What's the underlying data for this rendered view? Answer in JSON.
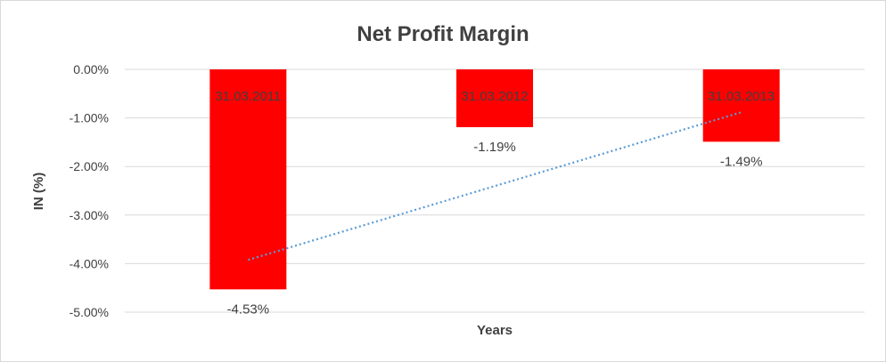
{
  "chart_data": {
    "type": "bar",
    "title": "Net Profit Margin",
    "xlabel": "Years",
    "ylabel": "IN (%)",
    "categories": [
      "31.03.2011",
      "31.03.2012",
      "31.03.2013"
    ],
    "values": [
      -4.53,
      -1.19,
      -1.49
    ],
    "data_labels": [
      "-4.53%",
      "-1.19%",
      "-1.49%"
    ],
    "yticks": [
      "0.00%",
      "-1.00%",
      "-2.00%",
      "-3.00%",
      "-4.00%",
      "-5.00%"
    ],
    "ylim": [
      -5,
      0
    ],
    "grid": true,
    "trendline": {
      "type": "linear",
      "style": "dotted"
    },
    "colors": {
      "bar": "#ff0000",
      "trendline": "#5b9bd5",
      "grid": "#d9d9d9"
    }
  }
}
